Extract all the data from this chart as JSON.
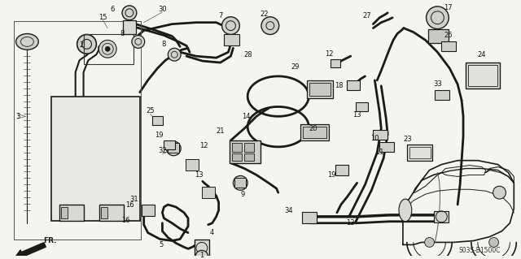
{
  "bg_color": "#f5f5f0",
  "line_color": "#1a1a1a",
  "diagram_code": "S03S-B1500C",
  "figsize": [
    6.4,
    3.19
  ],
  "dpi": 100
}
